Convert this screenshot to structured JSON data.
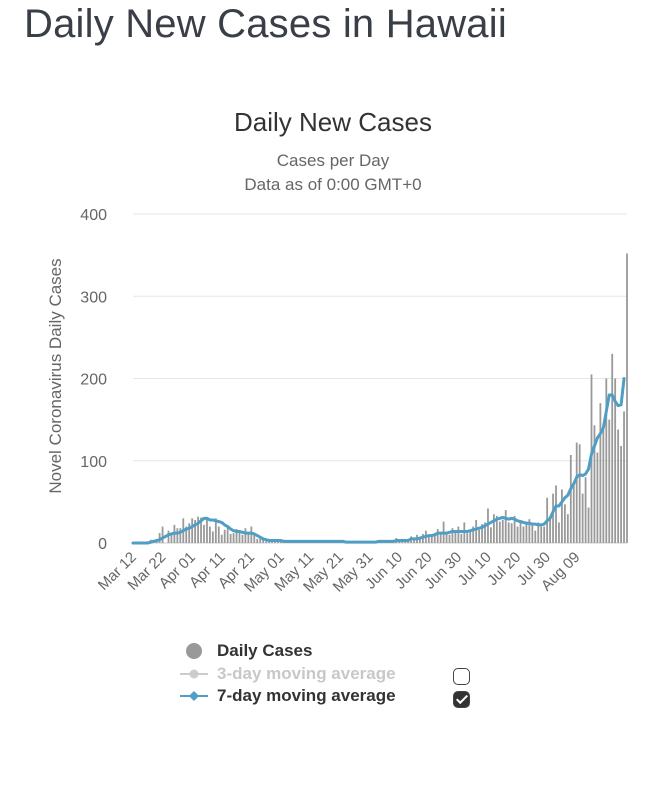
{
  "page": {
    "title": "Daily New Cases in Hawaii"
  },
  "chart_data": {
    "type": "bar",
    "title": "Daily New Cases",
    "subtitle": [
      "Cases per Day",
      "Data as of 0:00 GMT+0"
    ],
    "ylabel": "Novel Coronavirus Daily Cases",
    "xlabel": "",
    "ylim": [
      0,
      400
    ],
    "yticks": [
      0,
      100,
      200,
      300,
      400
    ],
    "grid": true,
    "date_start": "Mar 12",
    "xticks": [
      {
        "label": "Mar 12",
        "day": 0
      },
      {
        "label": "Mar 22",
        "day": 10
      },
      {
        "label": "Apr 01",
        "day": 20
      },
      {
        "label": "Apr 11",
        "day": 30
      },
      {
        "label": "Apr 21",
        "day": 40
      },
      {
        "label": "May 01",
        "day": 50
      },
      {
        "label": "May 11",
        "day": 60
      },
      {
        "label": "May 21",
        "day": 70
      },
      {
        "label": "May 31",
        "day": 80
      },
      {
        "label": "Jun 10",
        "day": 90
      },
      {
        "label": "Jun 20",
        "day": 100
      },
      {
        "label": "Jun 30",
        "day": 110
      },
      {
        "label": "Jul 10",
        "day": 120
      },
      {
        "label": "Jul 20",
        "day": 130
      },
      {
        "label": "Jul 30",
        "day": 140
      },
      {
        "label": "Aug 09",
        "day": 150
      }
    ],
    "series": [
      {
        "name": "Daily Cases",
        "type": "bar",
        "color": "#999999",
        "values": [
          0,
          0,
          0,
          0,
          1,
          2,
          4,
          0,
          3,
          12,
          20,
          0,
          15,
          10,
          22,
          18,
          18,
          30,
          20,
          24,
          30,
          28,
          32,
          31,
          22,
          30,
          20,
          14,
          30,
          20,
          10,
          16,
          20,
          11,
          12,
          17,
          14,
          10,
          18,
          12,
          20,
          12,
          5,
          8,
          5,
          2,
          4,
          3,
          4,
          3,
          3,
          2,
          2,
          3,
          2,
          1,
          2,
          2,
          3,
          1,
          2,
          1,
          2,
          3,
          1,
          1,
          2,
          1,
          2,
          1,
          2,
          1,
          1,
          2,
          1,
          2,
          1,
          1,
          2,
          1,
          2,
          1,
          1,
          2,
          2,
          1,
          3,
          1,
          3,
          6,
          3,
          5,
          4,
          5,
          8,
          4,
          10,
          6,
          11,
          15,
          10,
          8,
          12,
          17,
          11,
          26,
          12,
          10,
          18,
          14,
          20,
          11,
          25,
          12,
          15,
          20,
          28,
          16,
          23,
          25,
          42,
          19,
          35,
          33,
          26,
          28,
          40,
          25,
          24,
          33,
          20,
          28,
          20,
          26,
          29,
          22,
          15,
          25,
          20,
          20,
          55,
          32,
          60,
          70,
          25,
          65,
          47,
          35,
          107,
          70,
          122,
          120,
          60,
          80,
          43,
          205,
          143,
          110,
          170,
          140,
          200,
          150,
          230,
          200,
          138,
          118,
          160,
          352
        ],
        "value_note": "approximate daily counts read from bar heights, one per day starting Mar 12"
      },
      {
        "name": "3-day moving average",
        "type": "line",
        "color": "#cccccc",
        "enabled": false
      },
      {
        "name": "7-day moving average",
        "type": "line",
        "color": "#4e9ec5",
        "enabled": true,
        "values": [
          0,
          0,
          0,
          0,
          0,
          0,
          1,
          2,
          3,
          4,
          6,
          8,
          10,
          11,
          12,
          12,
          13,
          15,
          17,
          18,
          20,
          22,
          24,
          27,
          30,
          30,
          28,
          28,
          27,
          26,
          25,
          22,
          20,
          17,
          15,
          14,
          14,
          13,
          12,
          12,
          12,
          11,
          9,
          7,
          5,
          4,
          3,
          3,
          3,
          3,
          3,
          2,
          2,
          2,
          2,
          2,
          2,
          2,
          2,
          2,
          2,
          2,
          2,
          2,
          2,
          2,
          2,
          2,
          2,
          2,
          2,
          2,
          1,
          1,
          1,
          1,
          1,
          1,
          1,
          1,
          1,
          1,
          1,
          2,
          2,
          2,
          2,
          2,
          2,
          3,
          3,
          3,
          3,
          3,
          5,
          5,
          5,
          6,
          7,
          8,
          9,
          9,
          10,
          12,
          12,
          12,
          12,
          13,
          14,
          14,
          14,
          14,
          14,
          14,
          15,
          16,
          17,
          18,
          19,
          21,
          23,
          25,
          27,
          29,
          30,
          31,
          30,
          29,
          30,
          29,
          27,
          26,
          25,
          24,
          24,
          23,
          23,
          22,
          22,
          23,
          27,
          30,
          38,
          45,
          45,
          50,
          55,
          58,
          66,
          72,
          80,
          83,
          82,
          84,
          90,
          108,
          118,
          128,
          133,
          140,
          160,
          180,
          180,
          172,
          167,
          168,
          200
        ],
        "value_note": "approximate 7-day average read from the line, one per day starting Mar 12"
      }
    ],
    "legend": {
      "placement": "bottom-center"
    }
  },
  "legend": {
    "items": [
      {
        "label": "Daily Cases",
        "color": "#999999",
        "has_checkbox": false
      },
      {
        "label": "3-day moving average",
        "color": "#cccccc",
        "has_checkbox": true,
        "checked": false
      },
      {
        "label": "7-day moving average",
        "color": "#4e9ec5",
        "has_checkbox": true,
        "checked": true
      }
    ]
  }
}
